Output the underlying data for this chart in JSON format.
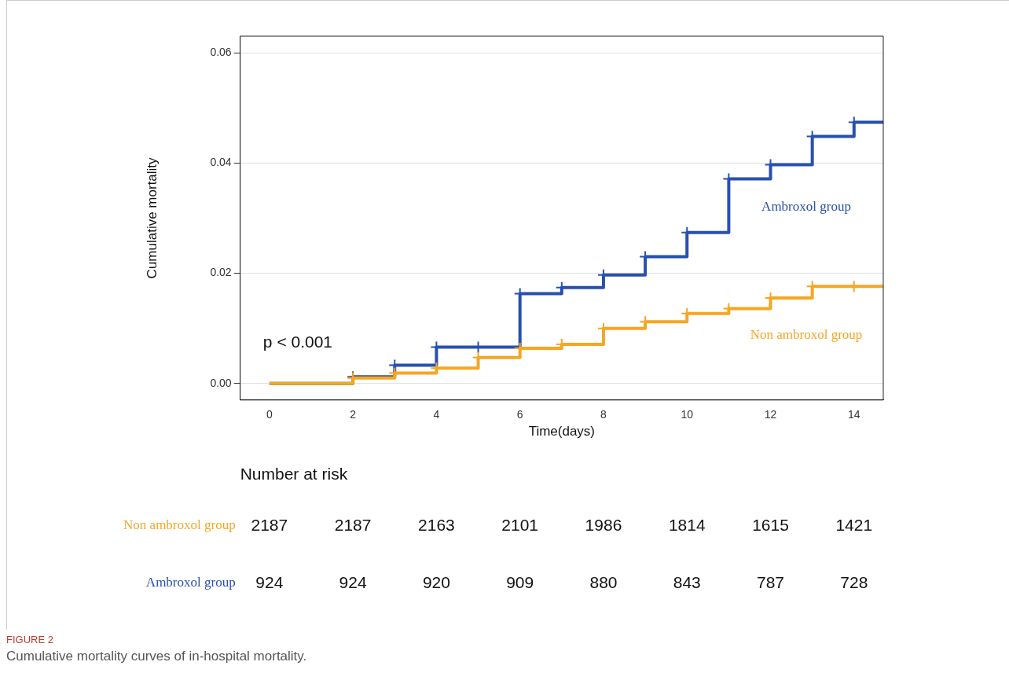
{
  "chart_data": {
    "type": "step",
    "xlabel": "Time(days)",
    "ylabel": "Cumulative mortality",
    "xlim": [
      -0.7,
      14.7
    ],
    "xticks": [
      0,
      2,
      4,
      6,
      8,
      10,
      12,
      14
    ],
    "ylim": [
      -0.003,
      0.063
    ],
    "yticks": [
      {
        "value": 0,
        "label": "0.00"
      },
      {
        "value": 0.02,
        "label": "0.02"
      },
      {
        "value": 0.04,
        "label": "0.04"
      },
      {
        "value": 0.06,
        "label": "0.06"
      }
    ],
    "grid": "y",
    "legend": false,
    "marker": "cross",
    "line_style": "solid",
    "series": [
      {
        "name": "Non ambroxol group",
        "color": "#f5a623",
        "x": [
          0,
          2,
          3,
          4,
          5,
          6,
          7,
          8,
          9,
          10,
          11,
          12,
          13,
          14,
          14.7
        ],
        "values": [
          0,
          0.001,
          0.0019,
          0.0028,
          0.0047,
          0.0064,
          0.0071,
          0.01,
          0.0112,
          0.0127,
          0.0136,
          0.0155,
          0.0176,
          0.0176,
          0.0176
        ]
      },
      {
        "name": "Ambroxol group",
        "color": "#2850b0",
        "x": [
          0,
          2,
          3,
          4,
          5,
          6,
          7,
          8,
          9,
          10,
          11,
          12,
          13,
          14,
          14.7
        ],
        "values": [
          0,
          0.0012,
          0.0033,
          0.0066,
          0.0066,
          0.0163,
          0.0174,
          0.0197,
          0.023,
          0.0274,
          0.0371,
          0.0397,
          0.0448,
          0.0474,
          0.0474
        ]
      }
    ],
    "annotations": [
      "p < 0.001",
      "Number at risk",
      "2187 2187 2163 2101 1986 1814 1615 1421",
      "924 924 920 909 880 843 787 728",
      "FIGURE 2",
      "Cumulative mortality curves of in-hospital mortality."
    ]
  }
}
